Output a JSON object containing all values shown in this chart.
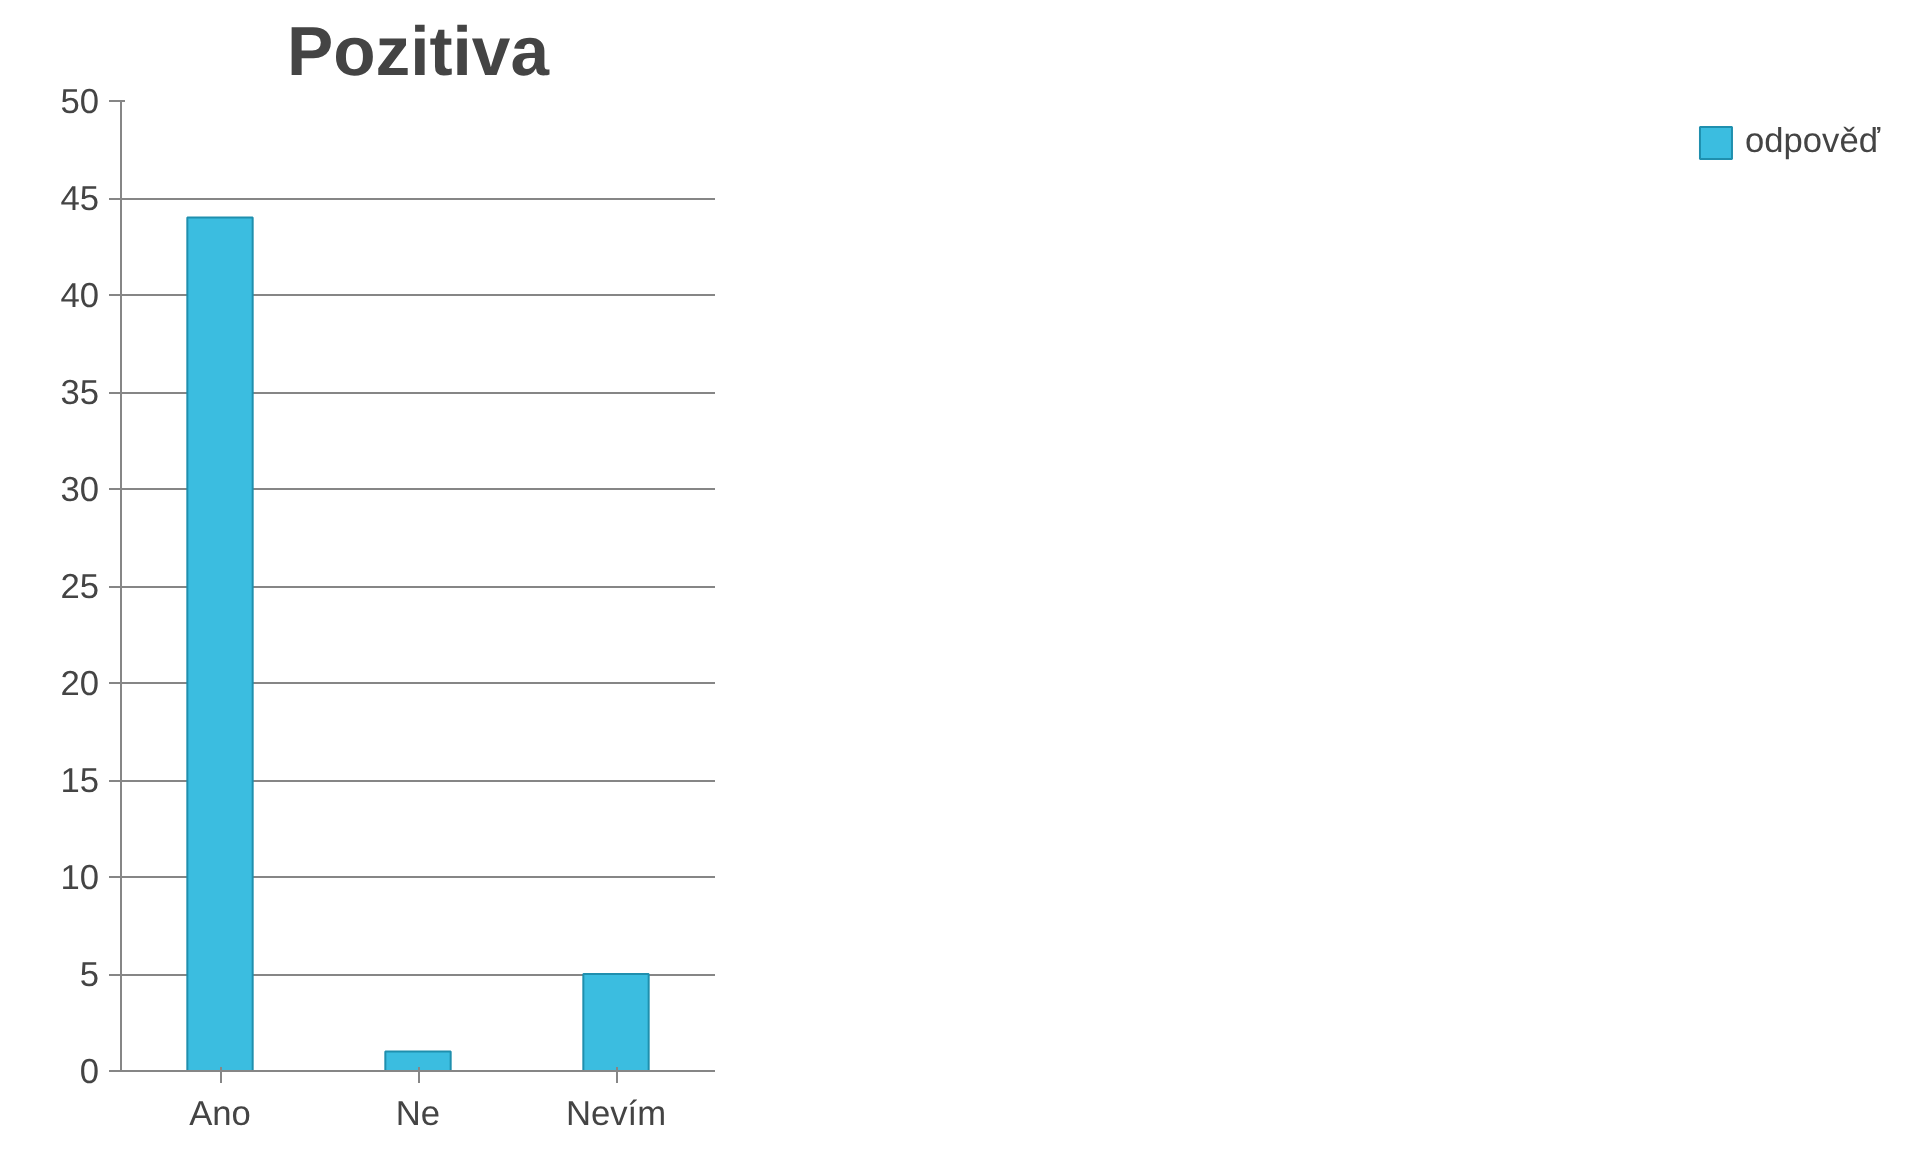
{
  "chart_data": {
    "type": "bar",
    "title": "Pozitiva",
    "categories": [
      "Ano",
      "Ne",
      "Nevím"
    ],
    "series": [
      {
        "name": "odpověď",
        "color": "#3bbde0",
        "values": [
          44,
          1,
          5
        ]
      }
    ],
    "ylim": [
      0,
      50
    ],
    "yticks": [
      0,
      5,
      10,
      15,
      20,
      25,
      30,
      35,
      40,
      45,
      50
    ],
    "grid": "y",
    "legend": "right"
  }
}
